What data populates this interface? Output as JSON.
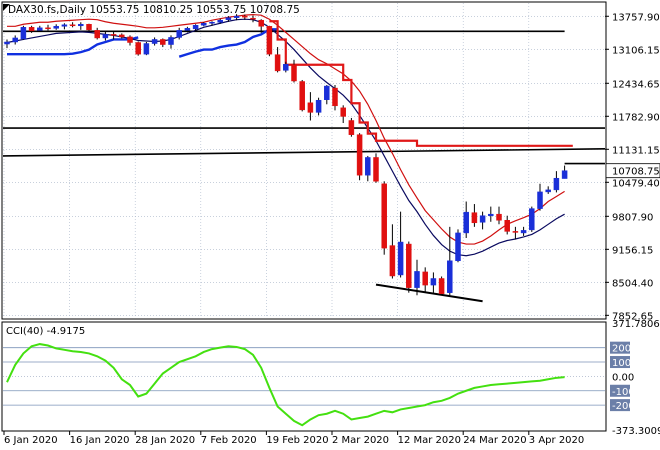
{
  "chart_data": {
    "type": "candlestick",
    "title": "DAX30.fs,Daily  10553.75 10810.25 10553.75 10708.75",
    "price_axis": {
      "ticks": [
        13757.9,
        13106.15,
        12434.65,
        11782.9,
        11131.15,
        10479.4,
        9807.9,
        9156.15,
        8504.4,
        7852.65
      ],
      "tick_labels": [
        "13757.90",
        "13106.15",
        "12434.65",
        "11782.90",
        "11131.15",
        "10479.40",
        "9807.90",
        "9156.15",
        "8504.40",
        "7852.65"
      ],
      "ylim": [
        7800,
        14020
      ],
      "current_price": 10708.75,
      "current_price_label": "10708.75"
    },
    "x_axis": {
      "labels": [
        "6 Jan 2020",
        "16 Jan 2020",
        "28 Jan 2020",
        "7 Feb 2020",
        "19 Feb 2020",
        "2 Mar 2020",
        "12 Mar 2020",
        "24 Mar 2020",
        "3 Apr 2020"
      ],
      "label_indices": [
        0,
        8,
        16,
        24,
        32,
        40,
        48,
        56,
        64
      ]
    },
    "candles": [
      {
        "o": 13210,
        "h": 13300,
        "l": 13130,
        "c": 13250
      },
      {
        "o": 13250,
        "h": 13380,
        "l": 13200,
        "c": 13330
      },
      {
        "o": 13310,
        "h": 13570,
        "l": 13290,
        "c": 13540
      },
      {
        "o": 13540,
        "h": 13570,
        "l": 13430,
        "c": 13470
      },
      {
        "o": 13480,
        "h": 13570,
        "l": 13450,
        "c": 13530
      },
      {
        "o": 13530,
        "h": 13590,
        "l": 13480,
        "c": 13510
      },
      {
        "o": 13520,
        "h": 13600,
        "l": 13490,
        "c": 13560
      },
      {
        "o": 13560,
        "h": 13620,
        "l": 13500,
        "c": 13590
      },
      {
        "o": 13590,
        "h": 13640,
        "l": 13540,
        "c": 13570
      },
      {
        "o": 13570,
        "h": 13640,
        "l": 13490,
        "c": 13600
      },
      {
        "o": 13600,
        "h": 13610,
        "l": 13460,
        "c": 13490
      },
      {
        "o": 13480,
        "h": 13530,
        "l": 13300,
        "c": 13330
      },
      {
        "o": 13330,
        "h": 13450,
        "l": 13280,
        "c": 13400
      },
      {
        "o": 13400,
        "h": 13450,
        "l": 13300,
        "c": 13380
      },
      {
        "o": 13390,
        "h": 13420,
        "l": 13320,
        "c": 13350
      },
      {
        "o": 13350,
        "h": 13380,
        "l": 13180,
        "c": 13240
      },
      {
        "o": 13240,
        "h": 13260,
        "l": 12980,
        "c": 13010
      },
      {
        "o": 13010,
        "h": 13250,
        "l": 12990,
        "c": 13220
      },
      {
        "o": 13220,
        "h": 13340,
        "l": 13180,
        "c": 13300
      },
      {
        "o": 13300,
        "h": 13320,
        "l": 13150,
        "c": 13200
      },
      {
        "o": 13200,
        "h": 13380,
        "l": 13120,
        "c": 13340
      },
      {
        "o": 13340,
        "h": 13530,
        "l": 13300,
        "c": 13480
      },
      {
        "o": 13480,
        "h": 13550,
        "l": 13440,
        "c": 13520
      },
      {
        "o": 13510,
        "h": 13600,
        "l": 13470,
        "c": 13580
      },
      {
        "o": 13580,
        "h": 13640,
        "l": 13560,
        "c": 13620
      },
      {
        "o": 13620,
        "h": 13660,
        "l": 13570,
        "c": 13640
      },
      {
        "o": 13640,
        "h": 13710,
        "l": 13610,
        "c": 13680
      },
      {
        "o": 13690,
        "h": 13760,
        "l": 13650,
        "c": 13730
      },
      {
        "o": 13730,
        "h": 13800,
        "l": 13680,
        "c": 13760
      },
      {
        "o": 13760,
        "h": 13790,
        "l": 13690,
        "c": 13740
      },
      {
        "o": 13720,
        "h": 13770,
        "l": 13640,
        "c": 13700
      },
      {
        "o": 13680,
        "h": 13700,
        "l": 13430,
        "c": 13560
      },
      {
        "o": 13560,
        "h": 13570,
        "l": 12970,
        "c": 13010
      },
      {
        "o": 13000,
        "h": 13150,
        "l": 12650,
        "c": 12680
      },
      {
        "o": 12690,
        "h": 12860,
        "l": 12650,
        "c": 12810
      },
      {
        "o": 12800,
        "h": 12900,
        "l": 12450,
        "c": 12480
      },
      {
        "o": 12470,
        "h": 12500,
        "l": 11880,
        "c": 11910
      },
      {
        "o": 12050,
        "h": 12260,
        "l": 11700,
        "c": 11860
      },
      {
        "o": 11860,
        "h": 12150,
        "l": 11800,
        "c": 12100
      },
      {
        "o": 12110,
        "h": 12400,
        "l": 12020,
        "c": 12380
      },
      {
        "o": 12340,
        "h": 12400,
        "l": 11900,
        "c": 11990
      },
      {
        "o": 11950,
        "h": 12000,
        "l": 11650,
        "c": 11780
      },
      {
        "o": 11700,
        "h": 11750,
        "l": 11380,
        "c": 11420
      },
      {
        "o": 11420,
        "h": 11450,
        "l": 10520,
        "c": 10620
      },
      {
        "o": 10620,
        "h": 11000,
        "l": 10500,
        "c": 10970
      },
      {
        "o": 10970,
        "h": 11050,
        "l": 10470,
        "c": 10500
      },
      {
        "o": 10450,
        "h": 10500,
        "l": 9050,
        "c": 9180
      },
      {
        "o": 9230,
        "h": 9650,
        "l": 8580,
        "c": 8630
      },
      {
        "o": 8650,
        "h": 9900,
        "l": 8600,
        "c": 9300
      },
      {
        "o": 9260,
        "h": 9310,
        "l": 8300,
        "c": 8400
      },
      {
        "o": 8400,
        "h": 8950,
        "l": 8250,
        "c": 8720
      },
      {
        "o": 8710,
        "h": 8800,
        "l": 8300,
        "c": 8450
      },
      {
        "o": 8450,
        "h": 8700,
        "l": 8300,
        "c": 8580
      },
      {
        "o": 8580,
        "h": 8620,
        "l": 8250,
        "c": 8280
      },
      {
        "o": 8300,
        "h": 9600,
        "l": 8250,
        "c": 8930
      },
      {
        "o": 8930,
        "h": 9550,
        "l": 8900,
        "c": 9480
      },
      {
        "o": 9480,
        "h": 10100,
        "l": 9380,
        "c": 9890
      },
      {
        "o": 9880,
        "h": 10050,
        "l": 9600,
        "c": 9680
      },
      {
        "o": 9690,
        "h": 9900,
        "l": 9550,
        "c": 9820
      },
      {
        "o": 9820,
        "h": 10000,
        "l": 9700,
        "c": 9850
      },
      {
        "o": 9850,
        "h": 10000,
        "l": 9650,
        "c": 9730
      },
      {
        "o": 9730,
        "h": 9820,
        "l": 9450,
        "c": 9510
      },
      {
        "o": 9510,
        "h": 9600,
        "l": 9350,
        "c": 9490
      },
      {
        "o": 9480,
        "h": 9600,
        "l": 9420,
        "c": 9530
      },
      {
        "o": 9540,
        "h": 10000,
        "l": 9500,
        "c": 9960
      },
      {
        "o": 9960,
        "h": 10450,
        "l": 9920,
        "c": 10290
      },
      {
        "o": 10290,
        "h": 10400,
        "l": 10250,
        "c": 10330
      },
      {
        "o": 10330,
        "h": 10700,
        "l": 10280,
        "c": 10560
      },
      {
        "o": 10553.75,
        "h": 10810.25,
        "l": 10553.75,
        "c": 10708.75
      }
    ],
    "fast_ma": [
      13240,
      13270,
      13300,
      13330,
      13360,
      13390,
      13420,
      13430,
      13440,
      13450,
      13440,
      13420,
      13400,
      13380,
      13350,
      13320,
      13280,
      13270,
      13260,
      13270,
      13300,
      13360,
      13420,
      13480,
      13540,
      13580,
      13620,
      13660,
      13690,
      13700,
      13690,
      13640,
      13540,
      13400,
      13260,
      13100,
      12920,
      12740,
      12580,
      12450,
      12330,
      12200,
      12030,
      11800,
      11550,
      11300,
      11000,
      10700,
      10400,
      10120,
      9900,
      9650,
      9430,
      9250,
      9120,
      9050,
      9030,
      9060,
      9120,
      9200,
      9280,
      9330,
      9360,
      9400,
      9450,
      9540,
      9650,
      9760,
      9850
    ],
    "slow_ma": [
      13560,
      13560,
      13600,
      13620,
      13640,
      13640,
      13660,
      13670,
      13680,
      13690,
      13700,
      13690,
      13650,
      13620,
      13600,
      13580,
      13560,
      13530,
      13530,
      13540,
      13560,
      13580,
      13600,
      13620,
      13640,
      13680,
      13710,
      13740,
      13760,
      13780,
      13790,
      13780,
      13700,
      13580,
      13440,
      13300,
      13160,
      13020,
      12900,
      12820,
      12720,
      12620,
      12480,
      12280,
      12020,
      11700,
      11350,
      11050,
      10730,
      10430,
      10170,
      9920,
      9740,
      9560,
      9400,
      9300,
      9260,
      9260,
      9320,
      9420,
      9540,
      9650,
      9720,
      9780,
      9850,
      9960,
      10100,
      10200,
      10300
    ],
    "step_line": {
      "x": [
        32,
        33,
        34,
        35,
        36,
        37,
        38,
        39,
        40,
        41,
        42,
        43,
        44,
        45,
        46,
        47,
        48,
        49,
        50,
        51,
        52,
        53,
        54,
        55,
        56,
        57,
        58,
        59,
        60,
        61,
        62,
        63,
        64,
        65,
        66,
        67,
        68,
        69
      ],
      "y": [
        13660,
        13300,
        12800,
        12800,
        12800,
        12800,
        12800,
        12800,
        12800,
        12500,
        12040,
        11660,
        11440,
        11300,
        11300,
        11300,
        11300,
        11300,
        11200,
        11200,
        11200,
        11200,
        11200,
        11200,
        11200,
        11200,
        11200,
        11200,
        11200,
        11200,
        11200,
        11200,
        11200,
        11200,
        11200,
        11200,
        11200,
        11200
      ]
    },
    "blue_band": [
      13010,
      13010,
      13010,
      13010,
      13010,
      13010,
      13010,
      13010,
      13020,
      13050,
      13100,
      13200,
      13250,
      13300,
      13300,
      13300,
      13340,
      null,
      null,
      null,
      null,
      12960,
      13010,
      13060,
      13100,
      13100,
      13150,
      13180,
      13200,
      13250,
      13350,
      13400,
      13500,
      13500
    ],
    "horizontal_lines": [
      {
        "y1": 13460,
        "y2": 13460,
        "x1": 0,
        "x2": 68
      },
      {
        "y1": 11550,
        "y2": 11550,
        "x1": 0,
        "x2": -1
      },
      {
        "y1": 11000,
        "y2": 11140,
        "x1": 0,
        "x2": -1
      },
      {
        "y1": 10850,
        "y2": 10850,
        "x1": -1,
        "x2": -1
      }
    ],
    "trendline": {
      "x1": 45,
      "y1": 8460,
      "x2": 58,
      "y2": 8130
    },
    "cci": {
      "label": "CCI(40) -4.9175",
      "ticks": [
        371.7806,
        200,
        100,
        0,
        -100,
        -200,
        -373.3009
      ],
      "tick_labels": [
        "371.7806",
        "200",
        "100",
        "0.00",
        "-100",
        "-200",
        "-373.3009"
      ],
      "values": [
        -40,
        80,
        160,
        210,
        225,
        215,
        195,
        185,
        175,
        170,
        160,
        140,
        110,
        60,
        -20,
        -60,
        -140,
        -120,
        -50,
        20,
        60,
        100,
        120,
        140,
        170,
        190,
        200,
        210,
        205,
        190,
        150,
        60,
        -80,
        -210,
        -260,
        -310,
        -340,
        -300,
        -270,
        -260,
        -240,
        -260,
        -300,
        -290,
        -280,
        -260,
        -240,
        -250,
        -230,
        -220,
        -210,
        -200,
        -180,
        -170,
        -150,
        -120,
        -100,
        -80,
        -70,
        -60,
        -55,
        -50,
        -45,
        -40,
        -35,
        -30,
        -20,
        -10,
        -4.9175
      ]
    }
  }
}
